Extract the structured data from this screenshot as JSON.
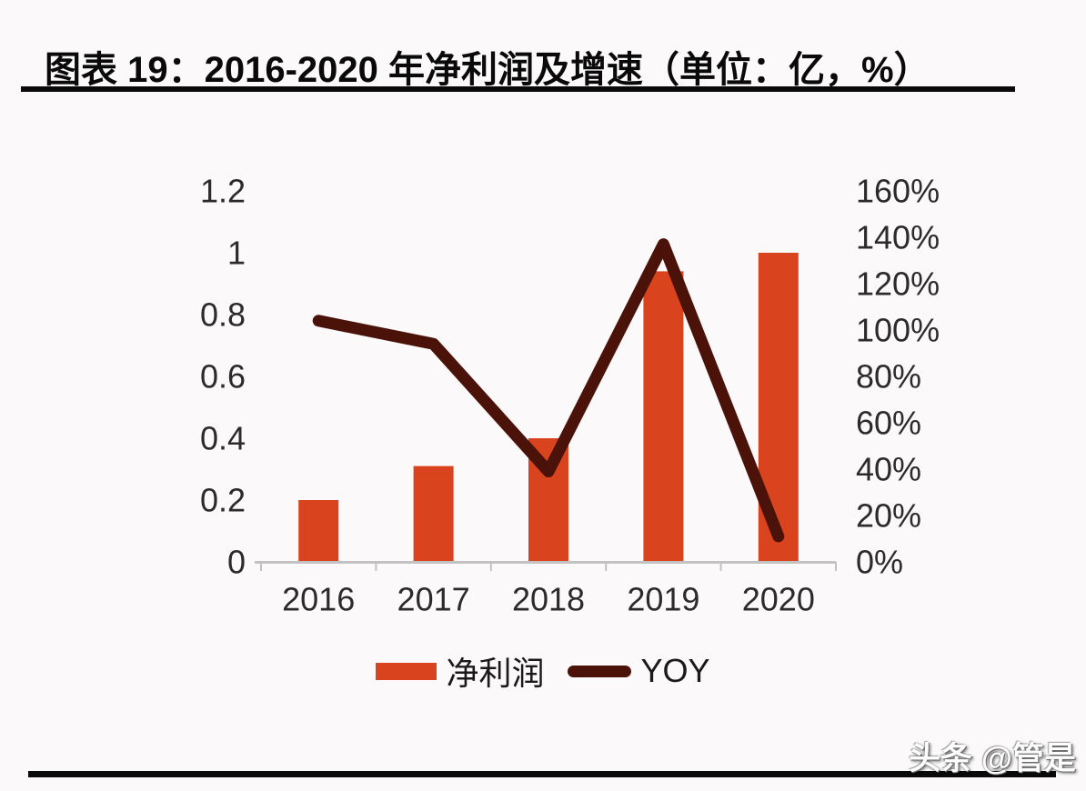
{
  "header": {
    "title": "图表 19：2016-2020 年净利润及增速（单位：亿，%）"
  },
  "chart_data": {
    "type": "combo",
    "title": "图表 19：2016-2020 年净利润及增速（单位：亿，%）",
    "categories": [
      "2016",
      "2017",
      "2018",
      "2019",
      "2020"
    ],
    "series": [
      {
        "name": "净利润",
        "type": "bar",
        "axis": "left",
        "unit": "亿",
        "color": "#D9441F",
        "values": [
          0.2,
          0.31,
          0.4,
          0.94,
          1.0
        ]
      },
      {
        "name": "YOY",
        "type": "line",
        "axis": "right",
        "unit": "%",
        "color": "#4A1208",
        "values": [
          104,
          94,
          39,
          137,
          11
        ]
      }
    ],
    "left_axis": {
      "range": [
        0,
        1.2
      ],
      "tick_step": 0.2,
      "tick_labels": [
        "1.2",
        "1",
        "0.8",
        "0.6",
        "0.4",
        "0.2",
        "0"
      ]
    },
    "right_axis": {
      "range_percent": [
        0,
        160
      ],
      "tick_step_percent": 20,
      "tick_labels": [
        "160%",
        "140%",
        "120%",
        "100%",
        "80%",
        "60%",
        "40%",
        "20%",
        "0%"
      ]
    },
    "x_axis": {
      "tick_labels": [
        "2016",
        "2017",
        "2018",
        "2019",
        "2020"
      ]
    },
    "legend": {
      "entries": [
        "净利润",
        "YOY"
      ],
      "position": "bottom"
    },
    "grid": false
  },
  "footer": {
    "watermark": "头条 @管是"
  },
  "colors": {
    "bar": "#D9441F",
    "line": "#4A1208",
    "axis_line": "#C2C2C2",
    "axis_text": "#2B2B2B",
    "rule": "#0A0A0A",
    "background": "#FBF9F9"
  }
}
